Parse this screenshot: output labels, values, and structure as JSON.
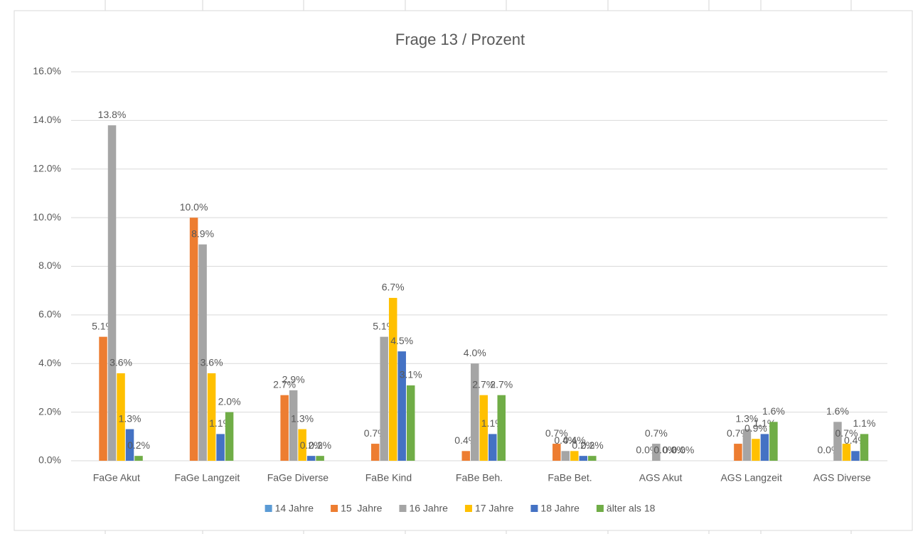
{
  "chart_data": {
    "type": "bar",
    "title": "Frage 13 / Prozent",
    "categories": [
      "FaGe Akut",
      "FaGe Langzeit",
      "FaGe Diverse",
      "FaBe Kind",
      "FaBe Beh.",
      "FaBe Bet.",
      "AGS Akut",
      "AGS Langzeit",
      "AGS Diverse"
    ],
    "series": [
      {
        "name": "14 Jahre",
        "color": "#5b9bd5",
        "values": [
          null,
          null,
          null,
          null,
          null,
          null,
          null,
          null,
          null
        ],
        "value_labels": [
          null,
          null,
          null,
          null,
          null,
          null,
          null,
          null,
          null
        ]
      },
      {
        "name": "15  Jahre",
        "color": "#ed7d31",
        "values": [
          5.1,
          10.0,
          2.7,
          0.7,
          0.4,
          0.7,
          0.0,
          0.7,
          0.0
        ],
        "value_labels": [
          "5.1%",
          "10.0%",
          "2.7%",
          "0.7%",
          "0.4%",
          "0.7%",
          "0.0%",
          "0.7%",
          "0.0%"
        ]
      },
      {
        "name": "16 Jahre",
        "color": "#a5a5a5",
        "values": [
          13.8,
          8.9,
          2.9,
          5.1,
          4.0,
          0.4,
          0.7,
          1.3,
          1.6
        ],
        "value_labels": [
          "13.8%",
          "8.9%",
          "2.9%",
          "5.1%",
          "4.0%",
          "0.4%",
          "0.7%",
          "1.3%",
          "1.6%"
        ]
      },
      {
        "name": "17 Jahre",
        "color": "#ffc000",
        "values": [
          3.6,
          3.6,
          1.3,
          6.7,
          2.7,
          0.4,
          0.0,
          0.9,
          0.7
        ],
        "value_labels": [
          "3.6%",
          "3.6%",
          "1.3%",
          "6.7%",
          "2.7%",
          "0.4%",
          "0.0%",
          "0.9%",
          "0.7%"
        ]
      },
      {
        "name": "18 Jahre",
        "color": "#4472c4",
        "values": [
          1.3,
          1.1,
          0.2,
          4.5,
          1.1,
          0.2,
          0.0,
          1.1,
          0.4
        ],
        "value_labels": [
          "1.3%",
          "1.1%",
          "0.2%",
          "4.5%",
          "1.1%",
          "0.2%",
          "0.0%",
          "1.1%",
          "0.4%"
        ]
      },
      {
        "name": "älter als 18",
        "color": "#70ad47",
        "values": [
          0.2,
          2.0,
          0.2,
          3.1,
          2.7,
          0.2,
          0.0,
          1.6,
          1.1
        ],
        "value_labels": [
          "0.2%",
          "2.0%",
          "0.2%",
          "3.1%",
          "2.7%",
          "0.2%",
          "0.0%",
          "1.6%",
          "1.1%"
        ]
      }
    ],
    "ylim": [
      0,
      16
    ],
    "yticks": [
      {
        "value": 0,
        "label": "0.0%"
      },
      {
        "value": 2,
        "label": "2.0%"
      },
      {
        "value": 4,
        "label": "4.0%"
      },
      {
        "value": 6,
        "label": "6.0%"
      },
      {
        "value": 8,
        "label": "8.0%"
      },
      {
        "value": 10,
        "label": "10.0%"
      },
      {
        "value": 12,
        "label": "12.0%"
      },
      {
        "value": 14,
        "label": "14.0%"
      },
      {
        "value": 16,
        "label": "16.0%"
      }
    ],
    "grid": true,
    "legend": "bottom"
  }
}
